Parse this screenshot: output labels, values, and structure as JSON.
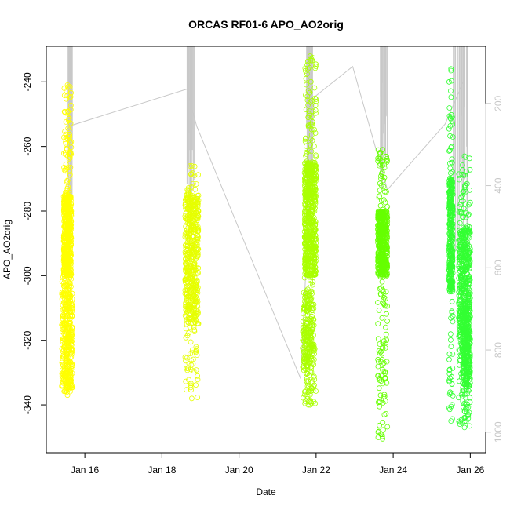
{
  "chart_data": {
    "type": "scatter",
    "title": "ORCAS RF01-6 APO_AO2orig",
    "xlabel": "Date",
    "ylabel": "APO_AO2orig",
    "x_ticks": [
      {
        "value": 16,
        "label": "Jan 16"
      },
      {
        "value": 18,
        "label": "Jan 18"
      },
      {
        "value": 20,
        "label": "Jan 20"
      },
      {
        "value": 22,
        "label": "Jan 22"
      },
      {
        "value": 24,
        "label": "Jan 24"
      },
      {
        "value": 26,
        "label": "Jan 26"
      }
    ],
    "y_ticks": [
      -340,
      -320,
      -300,
      -280,
      -260,
      -240
    ],
    "y_right_ticks": [
      200,
      400,
      600,
      800,
      1000
    ],
    "xlim": [
      15.0,
      26.4
    ],
    "ylim": [
      -354.8,
      -229.0
    ],
    "y_right_lim": [
      61,
      1050
    ],
    "y_right_axis_color": "#c8c8c8",
    "flight_track_color": "#c8c8c8",
    "grid": false,
    "series": [
      {
        "color": "#ffff00",
        "clusters": [
          {
            "x": [
              15.45,
              15.65
            ],
            "y": [
              -337,
              -241
            ],
            "core": [
              -300,
              -275
            ],
            "n": 650
          },
          {
            "x": [
              15.4,
              15.68
            ],
            "y": [
              -336,
              -300
            ],
            "core": [
              -335,
              -305
            ],
            "n": 300
          }
        ]
      },
      {
        "color": "#e6ff00",
        "clusters": [
          {
            "x": [
              18.6,
              18.95
            ],
            "y": [
              -338,
              -266
            ],
            "core": [
              -315,
              -275
            ],
            "n": 550
          }
        ]
      },
      {
        "color": "#aaff00",
        "clusters": [
          {
            "x": [
              21.7,
              22.0
            ],
            "y": [
              -340,
              -232
            ],
            "core": [
              -300,
              -265
            ],
            "n": 700
          },
          {
            "x": [
              21.65,
              21.95
            ],
            "y": [
              -340,
              -305
            ],
            "core": [
              -330,
              -305
            ],
            "n": 200
          }
        ]
      },
      {
        "color": "#66ff00",
        "clusters": [
          {
            "x": [
              23.6,
              23.85
            ],
            "y": [
              -350.5,
              -261
            ],
            "core": [
              -300,
              -280
            ],
            "n": 550
          }
        ]
      },
      {
        "color": "#33ff33",
        "clusters": [
          {
            "x": [
              25.45,
              25.55
            ],
            "y": [
              -345,
              -236
            ],
            "core": [
              -305,
              -270
            ],
            "n": 350
          },
          {
            "x": [
              25.7,
              26.0
            ],
            "y": [
              -347,
              -263
            ],
            "core": [
              -325,
              -285
            ],
            "n": 550
          },
          {
            "x": [
              25.8,
              26.0
            ],
            "y": [
              -345,
              -290
            ],
            "core": [
              -335,
              -310
            ],
            "n": 250
          }
        ]
      }
    ],
    "flight_track": [
      {
        "x": 15.6,
        "y2": 255
      },
      {
        "x": 18.65,
        "y2": 165
      },
      {
        "x": 18.9,
        "y2": 255
      },
      {
        "x": 21.6,
        "y2": 870
      },
      {
        "x": 21.95,
        "y2": 185
      },
      {
        "x": 22.95,
        "y2": 110
      },
      {
        "x": 23.85,
        "y2": 410
      },
      {
        "x": 25.35,
        "y2": 250
      },
      {
        "x": 25.85,
        "y2": 140
      }
    ],
    "flight_spikes": [
      {
        "x": [
          15.55,
          15.68
        ],
        "y2": [
          61,
          470
        ]
      },
      {
        "x": [
          18.65,
          18.85
        ],
        "y2": [
          61,
          520
        ]
      },
      {
        "x": [
          21.75,
          21.95
        ],
        "y2": [
          61,
          450
        ]
      },
      {
        "x": [
          23.65,
          23.85
        ],
        "y2": [
          61,
          410
        ]
      },
      {
        "x": [
          25.55,
          25.95
        ],
        "y2": [
          61,
          600
        ]
      }
    ]
  }
}
